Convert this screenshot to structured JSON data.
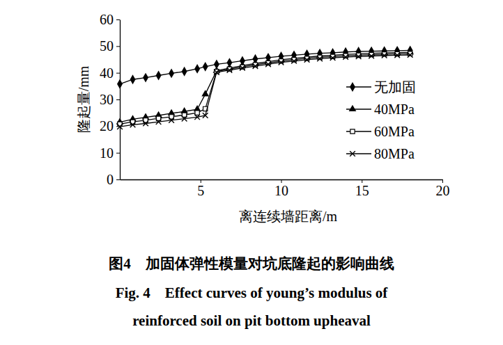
{
  "chart_data": {
    "type": "line",
    "title": "图4　加固体弹性模量对坑底隆起的影响曲线",
    "subtitle": [
      "Fig. 4　Effect curves of young’s modulus of",
      "reinforced soil on pit bottom upheaval"
    ],
    "x_label": "离连续墙距离/m",
    "y_label": "隆起量/mm",
    "x": [
      0,
      0.8,
      1.6,
      2.4,
      3.2,
      4,
      4.8,
      5.3,
      6,
      6.8,
      7.6,
      8.4,
      9.2,
      10,
      10.8,
      11.6,
      12.4,
      13.2,
      14,
      14.8,
      15.6,
      16.4,
      17.2,
      18
    ],
    "series": [
      {
        "name": "无加固",
        "color": "#000000",
        "marker": "diamond",
        "values": [
          35.8,
          37.5,
          38.2,
          39,
          39.8,
          40.5,
          41.5,
          42.3,
          43.2,
          43.8,
          44.5,
          45.2,
          45.7,
          46.2,
          46.6,
          47,
          47.3,
          47.5,
          47.8,
          48,
          48.1,
          48.2,
          48.3,
          48.4
        ]
      },
      {
        "name": "40MPa",
        "color": "#000000",
        "marker": "triangle",
        "values": [
          21.5,
          22.6,
          23.3,
          24,
          24.8,
          25.5,
          26.3,
          32,
          40.8,
          41.8,
          42.7,
          43.5,
          44.2,
          44.9,
          45.4,
          45.9,
          46.3,
          46.6,
          46.9,
          47.1,
          47.3,
          47.5,
          47.6,
          47.7
        ]
      },
      {
        "name": "60MPa",
        "color": "#000000",
        "marker": "square",
        "values": [
          20.8,
          21.6,
          22.2,
          22.9,
          23.5,
          24.2,
          25,
          26.5,
          40.5,
          41.4,
          42.2,
          43,
          43.7,
          44.4,
          44.9,
          45.4,
          45.8,
          46.1,
          46.4,
          46.6,
          46.8,
          47,
          47.1,
          47.2
        ]
      },
      {
        "name": "80MPa",
        "color": "#000000",
        "marker": "x",
        "values": [
          19.8,
          20.5,
          21,
          21.6,
          22.2,
          22.8,
          23.4,
          24,
          40.2,
          41,
          41.8,
          42.5,
          43.2,
          43.9,
          44.4,
          44.9,
          45.3,
          45.6,
          45.9,
          46.1,
          46.3,
          46.5,
          46.6,
          46.7
        ]
      }
    ],
    "xlim": [
      0,
      20
    ],
    "xticks": [
      5,
      10,
      15,
      20
    ],
    "ylim": [
      0,
      60
    ],
    "yticks": [
      0,
      10,
      20,
      30,
      40,
      50,
      60
    ],
    "legend": "right",
    "grid": false
  }
}
